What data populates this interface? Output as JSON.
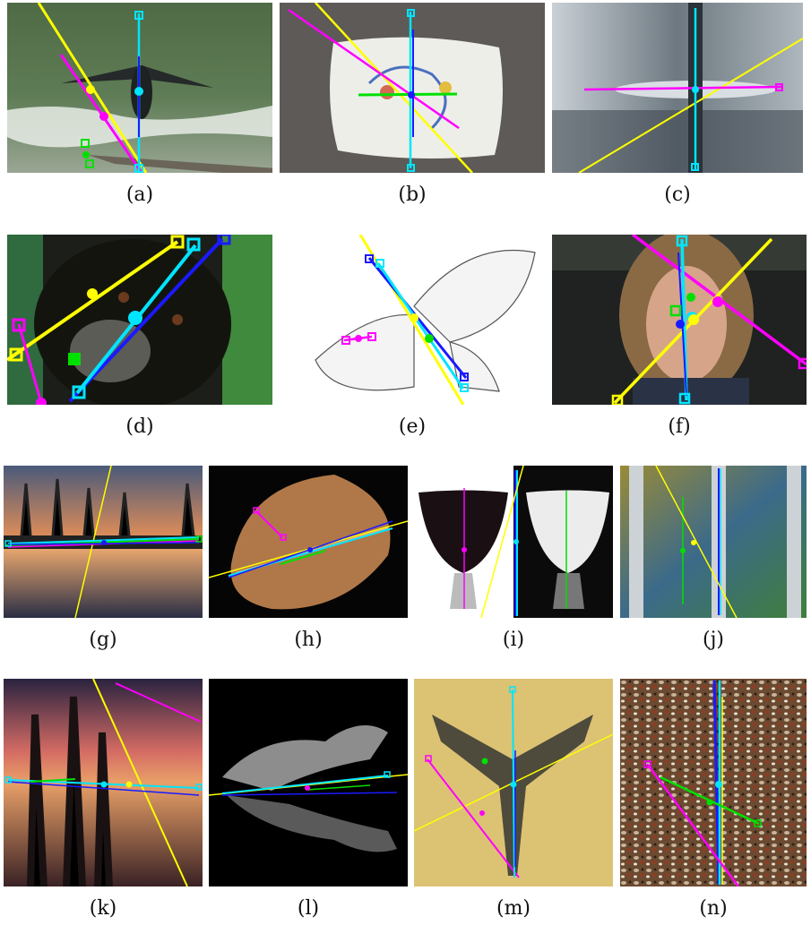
{
  "figure": {
    "panels": [
      {
        "id": "a",
        "caption": "(a)"
      },
      {
        "id": "b",
        "caption": "(b)"
      },
      {
        "id": "c",
        "caption": "(c)"
      },
      {
        "id": "d",
        "caption": "(d)"
      },
      {
        "id": "e",
        "caption": "(e)"
      },
      {
        "id": "f",
        "caption": "(f)"
      },
      {
        "id": "g",
        "caption": "(g)"
      },
      {
        "id": "h",
        "caption": "(h)"
      },
      {
        "id": "i",
        "caption": "(i)"
      },
      {
        "id": "j",
        "caption": "(j)"
      },
      {
        "id": "k",
        "caption": "(k)"
      },
      {
        "id": "l",
        "caption": "(l)"
      },
      {
        "id": "m",
        "caption": "(m)"
      },
      {
        "id": "n",
        "caption": "(n)"
      }
    ],
    "axis_colors": {
      "yellow": "#ffff00",
      "magenta": "#ff00ff",
      "cyan": "#00e5ff",
      "blue": "#1a1aff",
      "green": "#00e000"
    }
  }
}
